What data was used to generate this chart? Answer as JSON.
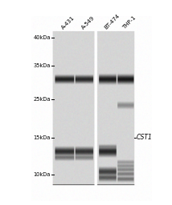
{
  "background_color": "#ffffff",
  "gel_bg": 210,
  "lane_labels": [
    "A-431",
    "A-549",
    "BT-474",
    "THP-1"
  ],
  "marker_labels": [
    "40kDa",
    "35kDa",
    "25kDa",
    "15kDa",
    "10kDa"
  ],
  "cst1_label": "CST1",
  "fig_width": 2.14,
  "fig_height": 2.56,
  "dpi": 100
}
